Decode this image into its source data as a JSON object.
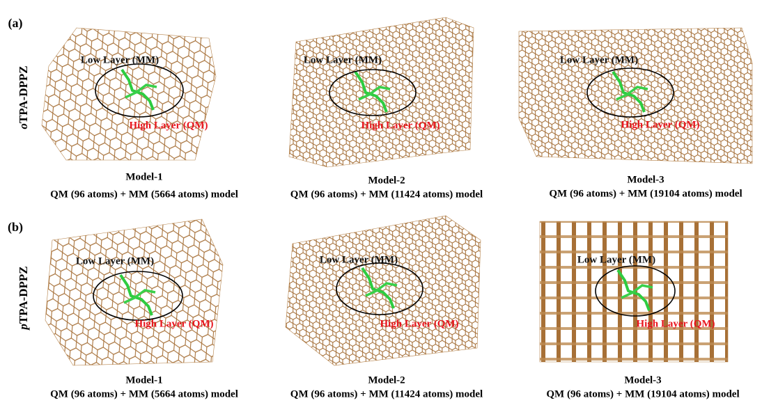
{
  "panels": [
    {
      "label": "(a)",
      "molecule_prefix": "o",
      "molecule_name": "TPA-DPPZ",
      "models": [
        {
          "low_layer": "Low Layer (MM)",
          "high_layer": "High Layer (QM)",
          "name": "Model-1",
          "description": "QM (96 atoms) + MM (5664 atoms) model"
        },
        {
          "low_layer": "Low Layer (MM)",
          "high_layer": "High Layer (QM)",
          "name": "Model-2",
          "description": "QM (96 atoms) + MM (11424 atoms) model"
        },
        {
          "low_layer": "Low Layer (MM)",
          "high_layer": "High Layer (QM)",
          "name": "Model-3",
          "description": "QM (96 atoms) + MM (19104 atoms) model"
        }
      ]
    },
    {
      "label": "(b)",
      "molecule_prefix": "p",
      "molecule_name": "TPA-DPPZ",
      "models": [
        {
          "low_layer": "Low Layer (MM)",
          "high_layer": "High Layer (QM)",
          "name": "Model-1",
          "description": "QM (96 atoms) + MM (5664 atoms) model"
        },
        {
          "low_layer": "Low Layer (MM)",
          "high_layer": "High Layer (QM)",
          "name": "Model-2",
          "description": "QM (96 atoms) + MM (11424 atoms) model"
        },
        {
          "low_layer": "Low Layer (MM)",
          "high_layer": "High Layer (QM)",
          "name": "Model-3",
          "description": "QM (96 atoms) + MM (19104 atoms) model"
        }
      ]
    }
  ]
}
